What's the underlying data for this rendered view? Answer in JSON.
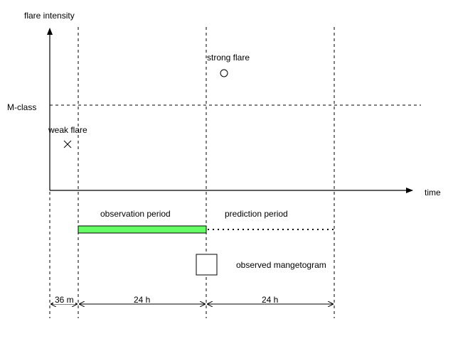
{
  "axes": {
    "y_label": "flare intensity",
    "x_label": "time"
  },
  "threshold": {
    "label": "M-class"
  },
  "events": {
    "weak_flare": {
      "label": "weak flare",
      "marker": "cross-icon"
    },
    "strong_flare": {
      "label": "strong flare",
      "marker": "circle-icon"
    }
  },
  "periods": {
    "observation": {
      "label": "observation period",
      "color": "#66ff66"
    },
    "prediction": {
      "label": "prediction period"
    }
  },
  "magnetogram": {
    "label": "observed mangetogram"
  },
  "durations": {
    "first": "36 m",
    "second": "24 h",
    "third": "24 h"
  }
}
